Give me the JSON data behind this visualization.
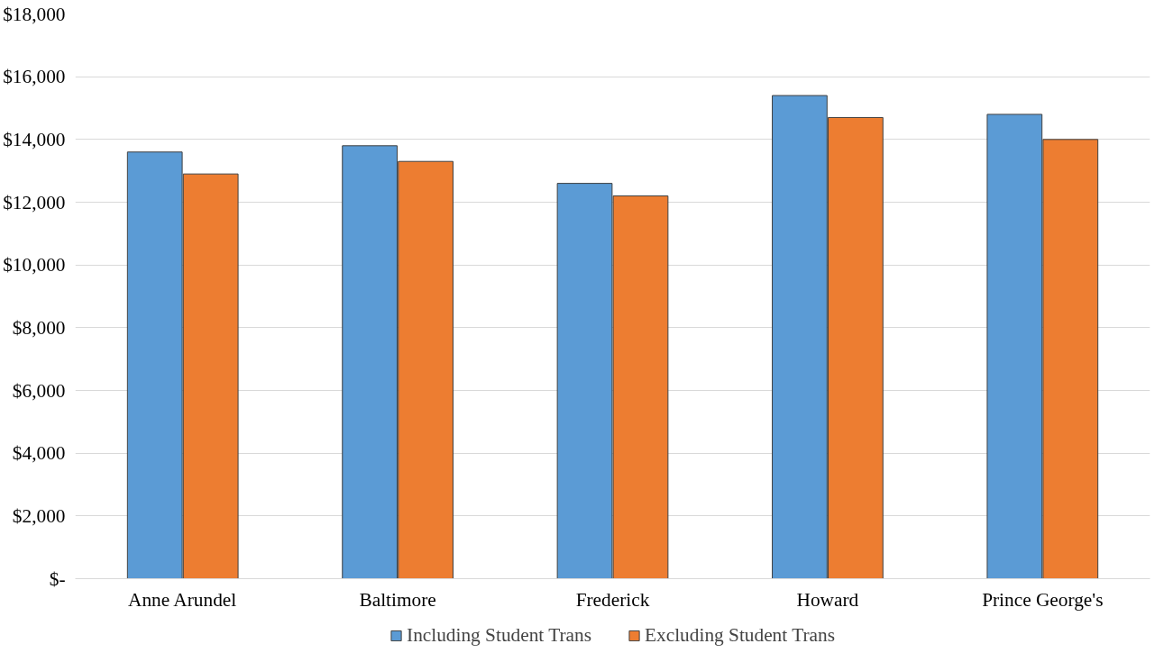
{
  "chart_data": {
    "type": "bar",
    "categories": [
      "Anne Arundel",
      "Baltimore",
      "Frederick",
      "Howard",
      "Prince George's"
    ],
    "series": [
      {
        "name": "Including Student Trans",
        "color": "#5b9bd5",
        "values": [
          13600,
          13800,
          12600,
          15400,
          14800
        ]
      },
      {
        "name": "Excluding Student Trans",
        "color": "#ed7d31",
        "values": [
          12900,
          13300,
          12200,
          14700,
          14000
        ]
      }
    ],
    "ylim": [
      0,
      18000
    ],
    "yticks": [
      {
        "value": 0,
        "label": "$-"
      },
      {
        "value": 2000,
        "label": "$2,000"
      },
      {
        "value": 4000,
        "label": "$4,000"
      },
      {
        "value": 6000,
        "label": "$6,000"
      },
      {
        "value": 8000,
        "label": "$8,000"
      },
      {
        "value": 10000,
        "label": "$10,000"
      },
      {
        "value": 12000,
        "label": "$12,000"
      },
      {
        "value": 14000,
        "label": "$14,000"
      },
      {
        "value": 16000,
        "label": "$16,000"
      },
      {
        "value": 18000,
        "label": "$18,000"
      }
    ],
    "grid": "y",
    "legend": "bottom"
  }
}
